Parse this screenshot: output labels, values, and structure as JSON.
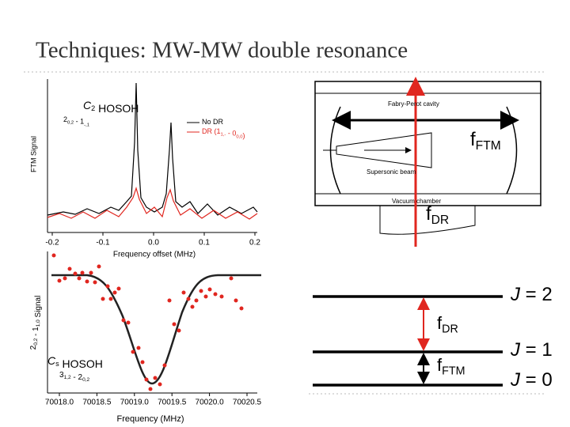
{
  "header": {
    "title": "Techniques: MW-MW double resonance"
  },
  "spectrum_panel": {
    "species": [
      {
        "text": "C",
        "sub": "2",
        "italic": true
      },
      {
        "text": " HOSOH"
      }
    ],
    "transition": [
      {
        "text": "2",
        "sub": "0,2"
      },
      {
        "text": " - 1",
        "sub": "-,1"
      }
    ],
    "legend": [
      {
        "segments": [
          {
            "text": "No DR"
          }
        ],
        "color": "#000000"
      },
      {
        "segments": [
          {
            "text": "DR (1",
            "sub": "1,-"
          },
          {
            "text": " - 0",
            "sub": "0,0"
          },
          {
            "text": ")"
          }
        ],
        "color": "#e0261f"
      }
    ],
    "y_label": "FTM Signal",
    "x_label": "Frequency offset (MHz)",
    "x_tick_labels": [
      "-0.2",
      "-0.1",
      "0.0",
      "0.1",
      "0.2"
    ]
  },
  "scan_panel": {
    "species": [
      {
        "text": "C",
        "sub": "s",
        "italic": true
      },
      {
        "text": " HOSOH"
      }
    ],
    "transition": [
      {
        "text": "3",
        "sub": "1,2"
      },
      {
        "text": " - 2",
        "sub": "0,2"
      }
    ],
    "y_label": [
      {
        "text": "2",
        "sub": "0,2"
      },
      {
        "text": " - 1",
        "sub": "1,0"
      },
      {
        "text": " Signal"
      }
    ],
    "x_label": "Frequency (MHz)",
    "x_tick_labels": [
      "70018.0",
      "70018.5",
      "70019.0",
      "70019.5",
      "70020.0",
      "70020.5"
    ]
  },
  "cavity_diagram": {
    "labels": [
      "Fabry-Perot cavity",
      "Supersonic beam",
      "Vacuum chamber"
    ],
    "ftm": [
      {
        "text": "f",
        "sub": "FTM"
      }
    ],
    "dr": [
      {
        "text": "f",
        "sub": "DR"
      }
    ]
  },
  "energy_levels": {
    "levels": [
      [
        {
          "text": "J",
          "italic": true
        },
        {
          "text": " = 2"
        }
      ],
      [
        {
          "text": "J",
          "italic": true
        },
        {
          "text": " = 1"
        }
      ],
      [
        {
          "text": "J",
          "italic": true
        },
        {
          "text": " = 0"
        }
      ]
    ],
    "dr": [
      {
        "text": "f",
        "sub": "DR"
      }
    ],
    "ftm": [
      {
        "text": "f",
        "sub": "FTM"
      }
    ]
  }
}
